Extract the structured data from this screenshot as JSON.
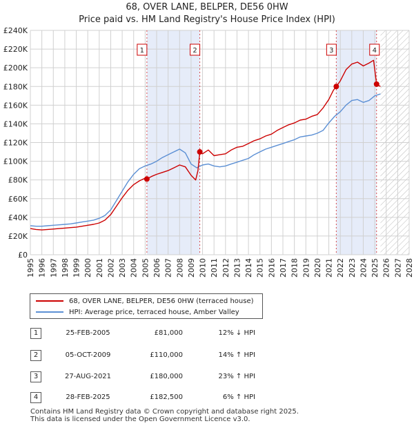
{
  "chart_data": {
    "type": "line",
    "title": "68, OVER LANE, BELPER, DE56 0HW",
    "subtitle": "Price paid vs. HM Land Registry's House Price Index (HPI)",
    "xlabel": "",
    "ylabel": "",
    "xlim": [
      1995,
      2028
    ],
    "ylim": [
      0,
      240000
    ],
    "x_ticks": [
      "1995",
      "1996",
      "1997",
      "1998",
      "1999",
      "2000",
      "2001",
      "2002",
      "2003",
      "2004",
      "2005",
      "2006",
      "2007",
      "2008",
      "2009",
      "2010",
      "2011",
      "2012",
      "2013",
      "2014",
      "2015",
      "2016",
      "2017",
      "2018",
      "2019",
      "2020",
      "2021",
      "2022",
      "2023",
      "2024",
      "2025",
      "2026",
      "2027",
      "2028"
    ],
    "y_ticks": [
      {
        "value": 0,
        "label": "£0"
      },
      {
        "value": 20000,
        "label": "£20K"
      },
      {
        "value": 40000,
        "label": "£40K"
      },
      {
        "value": 60000,
        "label": "£60K"
      },
      {
        "value": 80000,
        "label": "£80K"
      },
      {
        "value": 100000,
        "label": "£100K"
      },
      {
        "value": 120000,
        "label": "£120K"
      },
      {
        "value": 140000,
        "label": "£140K"
      },
      {
        "value": 160000,
        "label": "£160K"
      },
      {
        "value": 180000,
        "label": "£180K"
      },
      {
        "value": 200000,
        "label": "£200K"
      },
      {
        "value": 220000,
        "label": "£220K"
      },
      {
        "value": 240000,
        "label": "£240K"
      }
    ],
    "grid": true,
    "shaded_periods": [
      [
        2005.15,
        2009.76
      ],
      [
        2021.65,
        2025.16
      ]
    ],
    "future_hatch_start": 2025.5,
    "series": [
      {
        "name": "68, OVER LANE, BELPER, DE56 0HW (terraced house)",
        "color": "#cc0000",
        "x": [
          1995.0,
          1995.5,
          1996.0,
          1996.5,
          1997.0,
          1997.5,
          1998.0,
          1998.5,
          1999.0,
          1999.5,
          2000.0,
          2000.5,
          2001.0,
          2001.5,
          2002.0,
          2002.5,
          2003.0,
          2003.5,
          2004.0,
          2004.5,
          2005.0,
          2005.15,
          2005.6,
          2006.0,
          2006.5,
          2007.0,
          2007.5,
          2008.0,
          2008.5,
          2009.0,
          2009.4,
          2009.6,
          2009.76,
          2010.0,
          2010.5,
          2011.0,
          2011.5,
          2012.0,
          2012.5,
          2013.0,
          2013.5,
          2014.0,
          2014.5,
          2015.0,
          2015.5,
          2016.0,
          2016.5,
          2017.0,
          2017.5,
          2018.0,
          2018.5,
          2019.0,
          2019.5,
          2020.0,
          2020.5,
          2021.0,
          2021.4,
          2021.65,
          2022.0,
          2022.5,
          2023.0,
          2023.5,
          2024.0,
          2024.5,
          2024.9,
          2025.16,
          2025.5
        ],
        "values": [
          28000,
          27000,
          26500,
          27000,
          27500,
          28000,
          28500,
          29000,
          29500,
          30500,
          31500,
          32500,
          34000,
          37000,
          43000,
          52000,
          61000,
          69000,
          75000,
          79000,
          82000,
          81000,
          84000,
          86000,
          88000,
          90000,
          93000,
          96000,
          94000,
          85000,
          80000,
          90000,
          110000,
          108000,
          112000,
          106000,
          107000,
          108000,
          112000,
          115000,
          116000,
          119000,
          122000,
          124000,
          127000,
          129000,
          133000,
          136000,
          139000,
          141000,
          144000,
          145000,
          148000,
          150000,
          157000,
          166000,
          176000,
          180000,
          186000,
          198000,
          204000,
          206000,
          202000,
          205000,
          208000,
          182500,
          180000
        ]
      },
      {
        "name": "HPI: Average price, terraced house, Amber Valley",
        "color": "#5b8fd4",
        "x": [
          1995.0,
          1995.5,
          1996.0,
          1996.5,
          1997.0,
          1997.5,
          1998.0,
          1998.5,
          1999.0,
          1999.5,
          2000.0,
          2000.5,
          2001.0,
          2001.5,
          2002.0,
          2002.5,
          2003.0,
          2003.5,
          2004.0,
          2004.5,
          2005.0,
          2005.5,
          2006.0,
          2006.5,
          2007.0,
          2007.5,
          2008.0,
          2008.5,
          2009.0,
          2009.5,
          2010.0,
          2010.5,
          2011.0,
          2011.5,
          2012.0,
          2012.5,
          2013.0,
          2013.5,
          2014.0,
          2014.5,
          2015.0,
          2015.5,
          2016.0,
          2016.5,
          2017.0,
          2017.5,
          2018.0,
          2018.5,
          2019.0,
          2019.5,
          2020.0,
          2020.5,
          2021.0,
          2021.5,
          2022.0,
          2022.5,
          2023.0,
          2023.5,
          2024.0,
          2024.5,
          2025.0,
          2025.5
        ],
        "values": [
          31000,
          30500,
          30500,
          31000,
          31500,
          32000,
          32500,
          33000,
          34000,
          35000,
          36000,
          37000,
          39000,
          42000,
          48000,
          58000,
          68000,
          78000,
          86000,
          92000,
          95000,
          97000,
          100000,
          104000,
          107000,
          110000,
          113000,
          109000,
          97000,
          93000,
          96000,
          97000,
          95000,
          94000,
          95000,
          97000,
          99000,
          101000,
          103000,
          107000,
          110000,
          113000,
          115000,
          117000,
          119000,
          121000,
          123000,
          126000,
          127000,
          128000,
          130000,
          133000,
          141000,
          148000,
          153000,
          160000,
          165000,
          166000,
          163000,
          165000,
          170000,
          172000
        ]
      }
    ],
    "markers": [
      {
        "label": "1",
        "x": 2005.15,
        "y": 81000
      },
      {
        "label": "2",
        "x": 2009.76,
        "y": 110000
      },
      {
        "label": "3",
        "x": 2021.65,
        "y": 180000
      },
      {
        "label": "4",
        "x": 2025.16,
        "y": 182500
      }
    ]
  },
  "legend": {
    "items": [
      {
        "label": "68, OVER LANE, BELPER, DE56 0HW (terraced house)",
        "color": "#cc0000"
      },
      {
        "label": "HPI: Average price, terraced house, Amber Valley",
        "color": "#5b8fd4"
      }
    ]
  },
  "sales": [
    {
      "num": "1",
      "date": "25-FEB-2005",
      "price": "£81,000",
      "hpi": "12% ↓ HPI"
    },
    {
      "num": "2",
      "date": "05-OCT-2009",
      "price": "£110,000",
      "hpi": "14% ↑ HPI"
    },
    {
      "num": "3",
      "date": "27-AUG-2021",
      "price": "£180,000",
      "hpi": "23% ↑ HPI"
    },
    {
      "num": "4",
      "date": "28-FEB-2025",
      "price": "£182,500",
      "hpi": "6% ↑ HPI"
    }
  ],
  "footer": {
    "line1": "Contains HM Land Registry data © Crown copyright and database right 2025.",
    "line2": "This data is licensed under the Open Government Licence v3.0."
  }
}
